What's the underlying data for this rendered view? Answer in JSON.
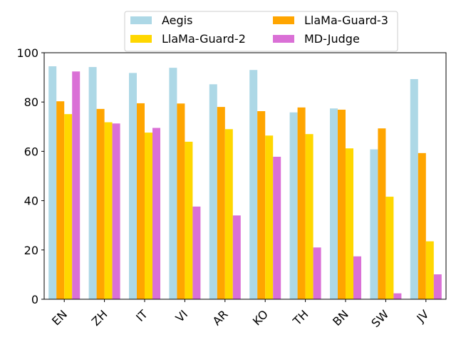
{
  "chart_data": {
    "type": "bar",
    "title": "",
    "xlabel": "",
    "ylabel": "",
    "ylim": [
      0,
      100
    ],
    "yticks": [
      0,
      20,
      40,
      60,
      80,
      100
    ],
    "grid": false,
    "legend_position": "top-center",
    "categories": [
      "EN",
      "ZH",
      "IT",
      "VI",
      "AR",
      "KO",
      "TH",
      "BN",
      "SW",
      "JV"
    ],
    "series": [
      {
        "name": "Aegis",
        "color": "#add8e6",
        "values": [
          94.5,
          94.2,
          91.8,
          93.9,
          87.2,
          93.0,
          75.8,
          77.4,
          60.8,
          89.3
        ]
      },
      {
        "name": "LlaMa-Guard-3",
        "color": "#ffa500",
        "values": [
          80.3,
          77.2,
          79.5,
          79.4,
          78.0,
          76.3,
          77.8,
          76.9,
          69.3,
          59.3
        ]
      },
      {
        "name": "LlaMa-Guard-2",
        "color": "#ffd700",
        "values": [
          75.1,
          71.8,
          67.6,
          63.9,
          69.0,
          66.4,
          67.0,
          61.2,
          41.6,
          23.5
        ]
      },
      {
        "name": "MD-Judge",
        "color": "#da70d6",
        "values": [
          92.4,
          71.3,
          69.5,
          37.6,
          34.0,
          57.8,
          21.0,
          17.4,
          2.4,
          10.1
        ]
      }
    ],
    "legend_order": [
      "Aegis",
      "LlaMa-Guard-2",
      "LlaMa-Guard-3",
      "MD-Judge"
    ]
  }
}
